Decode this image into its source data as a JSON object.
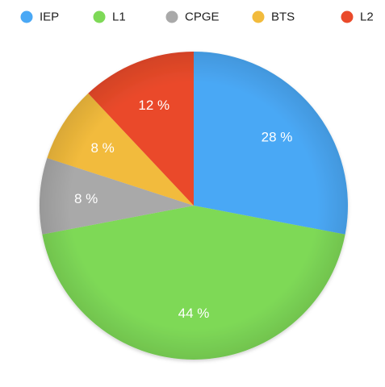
{
  "chart_data": {
    "type": "pie",
    "categories": [
      "IEP",
      "L1",
      "CPGE",
      "BTS",
      "L2"
    ],
    "values": [
      28,
      44,
      8,
      8,
      12
    ],
    "labels": [
      "28 %",
      "44 %",
      "8 %",
      "8 %",
      "12 %"
    ],
    "colors": [
      "#4aa8f5",
      "#7ed957",
      "#a9a9a9",
      "#f2bb3c",
      "#ea4a2a"
    ],
    "legend_position": "top",
    "start_angle": "12 o'clock",
    "direction": "clockwise"
  }
}
